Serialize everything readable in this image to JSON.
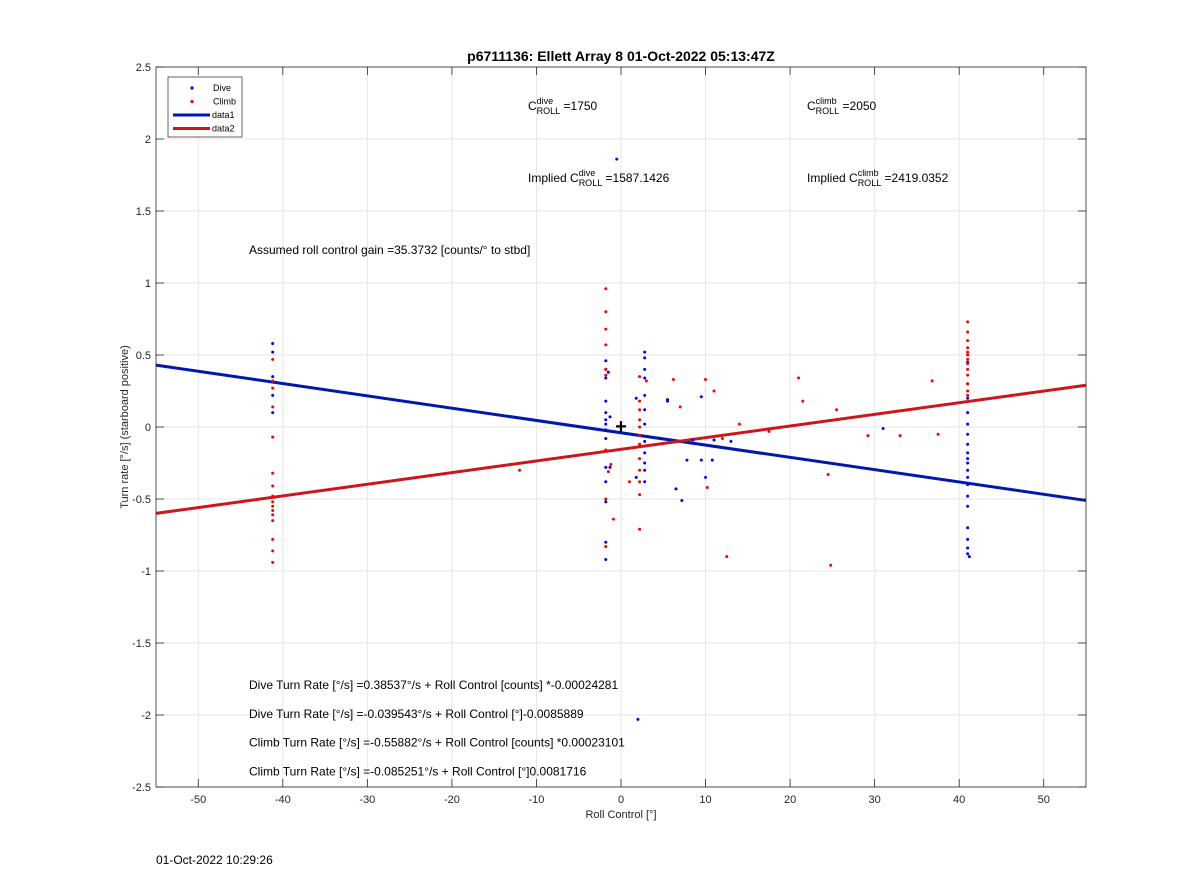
{
  "window": {
    "timestamp": "01-Oct-2022 10:29:26"
  },
  "chart_data": {
    "type": "scatter",
    "title": "p6711136: Ellett Array 8 01-Oct-2022 05:13:47Z",
    "xlabel": "Roll Control [°]",
    "ylabel": "Turn rate [°/s] (starboard positive)",
    "xlim": [
      -55,
      55
    ],
    "ylim": [
      -2.5,
      2.5
    ],
    "xticks": [
      -50,
      -40,
      -30,
      -20,
      -10,
      0,
      10,
      20,
      30,
      40,
      50
    ],
    "yticks": [
      -2.5,
      -2,
      -1.5,
      -1,
      -0.5,
      0,
      0.5,
      1,
      1.5,
      2,
      2.5
    ],
    "grid": true,
    "legend": {
      "placement": "top-left",
      "entries": [
        {
          "label": "Dive",
          "kind": "point",
          "color": "#0000ff"
        },
        {
          "label": "Climb",
          "kind": "point",
          "color": "#ff0000"
        },
        {
          "label": "data1",
          "kind": "line",
          "color": "#0018b0"
        },
        {
          "label": "data2",
          "kind": "line",
          "color": "#d0151a"
        }
      ]
    },
    "series": [
      {
        "name": "Dive",
        "type": "scatter",
        "color": "#0000ff",
        "points": [
          [
            -41.2,
            0.58
          ],
          [
            -41.2,
            0.52
          ],
          [
            -41.2,
            0.35
          ],
          [
            -41.2,
            0.22
          ],
          [
            -41.2,
            0.1
          ],
          [
            -1.8,
            0.46
          ],
          [
            -1.8,
            0.4
          ],
          [
            -1.8,
            0.34
          ],
          [
            -1.8,
            0.18
          ],
          [
            -1.8,
            0.1
          ],
          [
            -1.8,
            0.05
          ],
          [
            -1.8,
            0.02
          ],
          [
            -1.8,
            -0.02
          ],
          [
            -1.8,
            -0.08
          ],
          [
            -1.8,
            -0.28
          ],
          [
            -1.8,
            -0.38
          ],
          [
            -1.8,
            -0.52
          ],
          [
            -1.8,
            -0.8
          ],
          [
            -1.8,
            -0.92
          ],
          [
            -1.5,
            0.38
          ],
          [
            -1.3,
            0.07
          ],
          [
            -1.3,
            -0.28
          ],
          [
            -0.5,
            1.86
          ],
          [
            1.8,
            -0.35
          ],
          [
            1.8,
            0.2
          ],
          [
            2.8,
            0.52
          ],
          [
            2.8,
            0.48
          ],
          [
            2.8,
            0.4
          ],
          [
            2.8,
            0.34
          ],
          [
            2.8,
            0.22
          ],
          [
            2.8,
            0.12
          ],
          [
            2.8,
            0.02
          ],
          [
            2.8,
            -0.1
          ],
          [
            2.8,
            -0.18
          ],
          [
            2.8,
            -0.25
          ],
          [
            2.8,
            -0.3
          ],
          [
            2.8,
            -0.38
          ],
          [
            5.5,
            0.19
          ],
          [
            5.5,
            0.18
          ],
          [
            6.5,
            -0.43
          ],
          [
            7.2,
            -0.51
          ],
          [
            7.8,
            -0.23
          ],
          [
            8.5,
            -0.09
          ],
          [
            9.5,
            0.21
          ],
          [
            9.5,
            -0.23
          ],
          [
            10,
            -0.35
          ],
          [
            10.8,
            -0.23
          ],
          [
            11,
            -0.09
          ],
          [
            13,
            -0.1
          ],
          [
            2,
            -2.03
          ],
          [
            31,
            -0.01
          ],
          [
            41,
            0.45
          ],
          [
            41,
            0.3
          ],
          [
            41,
            0.2
          ],
          [
            41,
            0.1
          ],
          [
            41,
            0.02
          ],
          [
            41,
            -0.05
          ],
          [
            41,
            -0.12
          ],
          [
            41,
            -0.18
          ],
          [
            41,
            -0.22
          ],
          [
            41,
            -0.25
          ],
          [
            41,
            -0.3
          ],
          [
            41,
            -0.35
          ],
          [
            41,
            -0.4
          ],
          [
            41,
            -0.48
          ],
          [
            41,
            -0.55
          ],
          [
            41,
            -0.7
          ],
          [
            41,
            -0.78
          ],
          [
            41,
            -0.84
          ],
          [
            41,
            -0.88
          ],
          [
            41.2,
            -0.9
          ]
        ]
      },
      {
        "name": "Climb",
        "type": "scatter",
        "color": "#ff0000",
        "points": [
          [
            -41.2,
            0.47
          ],
          [
            -41.2,
            0.32
          ],
          [
            -41.2,
            0.27
          ],
          [
            -41.2,
            0.14
          ],
          [
            -41.2,
            -0.07
          ],
          [
            -41.2,
            -0.32
          ],
          [
            -41.2,
            -0.41
          ],
          [
            -41.2,
            -0.48
          ],
          [
            -41.2,
            -0.52
          ],
          [
            -41.2,
            -0.55
          ],
          [
            -41.2,
            -0.58
          ],
          [
            -41.2,
            -0.61
          ],
          [
            -41.2,
            -0.65
          ],
          [
            -41.2,
            -0.78
          ],
          [
            -41.2,
            -0.86
          ],
          [
            -41.2,
            -0.94
          ],
          [
            -12,
            -0.3
          ],
          [
            -1.8,
            0.96
          ],
          [
            -1.8,
            0.8
          ],
          [
            -1.8,
            0.68
          ],
          [
            -1.8,
            0.57
          ],
          [
            -1.8,
            0.4
          ],
          [
            -1.8,
            0.36
          ],
          [
            -1.8,
            -0.16
          ],
          [
            -1.8,
            -0.5
          ],
          [
            -1.8,
            -0.83
          ],
          [
            -1.5,
            -0.31
          ],
          [
            -1.2,
            -0.26
          ],
          [
            -0.9,
            -0.64
          ],
          [
            1,
            -0.38
          ],
          [
            2.2,
            0.35
          ],
          [
            2.2,
            0.18
          ],
          [
            2.2,
            0.12
          ],
          [
            2.2,
            0.05
          ],
          [
            2.2,
            0
          ],
          [
            2.2,
            -0.06
          ],
          [
            2.2,
            -0.12
          ],
          [
            2.2,
            -0.22
          ],
          [
            2.2,
            -0.3
          ],
          [
            2.2,
            -0.38
          ],
          [
            2.2,
            -0.47
          ],
          [
            2.2,
            -0.71
          ],
          [
            3,
            0.32
          ],
          [
            6.2,
            0.33
          ],
          [
            7,
            0.14
          ],
          [
            10,
            0.33
          ],
          [
            10.2,
            -0.42
          ],
          [
            11,
            0.25
          ],
          [
            12,
            -0.08
          ],
          [
            12.5,
            -0.9
          ],
          [
            14,
            0.02
          ],
          [
            17.5,
            -0.03
          ],
          [
            21,
            0.34
          ],
          [
            21.5,
            0.18
          ],
          [
            24.5,
            -0.33
          ],
          [
            24.8,
            -0.96
          ],
          [
            25.5,
            0.12
          ],
          [
            29.2,
            -0.06
          ],
          [
            33,
            -0.06
          ],
          [
            36.8,
            0.32
          ],
          [
            37.5,
            -0.05
          ],
          [
            41,
            0.73
          ],
          [
            41,
            0.66
          ],
          [
            41,
            0.6
          ],
          [
            41,
            0.55
          ],
          [
            41,
            0.52
          ],
          [
            41,
            0.5
          ],
          [
            41,
            0.47
          ],
          [
            41,
            0.44
          ],
          [
            41,
            0.4
          ],
          [
            41,
            0.36
          ],
          [
            41,
            0.3
          ],
          [
            41,
            0.25
          ],
          [
            41,
            0.22
          ]
        ]
      },
      {
        "name": "data1",
        "type": "line",
        "color": "#0018b0",
        "points": [
          [
            -55,
            0.43
          ],
          [
            55,
            -0.51
          ]
        ]
      },
      {
        "name": "data2",
        "type": "line",
        "color": "#d0151a",
        "points": [
          [
            -55,
            -0.6
          ],
          [
            55,
            0.29
          ]
        ]
      }
    ],
    "marker": {
      "label": "+",
      "x": 0,
      "y": 0
    },
    "annotations": [
      {
        "id": "c-dive",
        "x": -11,
        "y": 2.2,
        "prefix": "C",
        "sup": "dive",
        "sub": "ROLL",
        "text": " =1750"
      },
      {
        "id": "c-climb",
        "x": 22,
        "y": 2.2,
        "prefix": "C",
        "sup": "climb",
        "sub": "ROLL",
        "text": " =2050"
      },
      {
        "id": "implied-dive",
        "x": -11,
        "y": 1.7,
        "prefix": "Implied C",
        "sup": "dive",
        "sub": "ROLL",
        "text": " =1587.1426"
      },
      {
        "id": "implied-climb",
        "x": 22,
        "y": 1.7,
        "prefix": "Implied C",
        "sup": "climb",
        "sub": "ROLL",
        "text": " =2419.0352"
      },
      {
        "id": "gain",
        "x": -44,
        "y": 1.2,
        "text": "Assumed roll control gain =35.3732 [counts/° to stbd]"
      },
      {
        "id": "dive-counts",
        "x": -44,
        "y": -1.82,
        "text": "Dive Turn Rate [°/s] =0.38537°/s + Roll Control [counts] *-0.00024281"
      },
      {
        "id": "dive-deg",
        "x": -44,
        "y": -2.02,
        "text": "Dive Turn Rate [°/s] =-0.039543°/s + Roll Control [°]-0.0085889"
      },
      {
        "id": "climb-counts",
        "x": -44,
        "y": -2.22,
        "text": "Climb Turn Rate [°/s] =-0.55882°/s + Roll Control [counts] *0.00023101"
      },
      {
        "id": "climb-deg",
        "x": -44,
        "y": -2.42,
        "text": "Climb Turn Rate [°/s] =-0.085251°/s + Roll Control [°]0.0081716"
      }
    ]
  }
}
